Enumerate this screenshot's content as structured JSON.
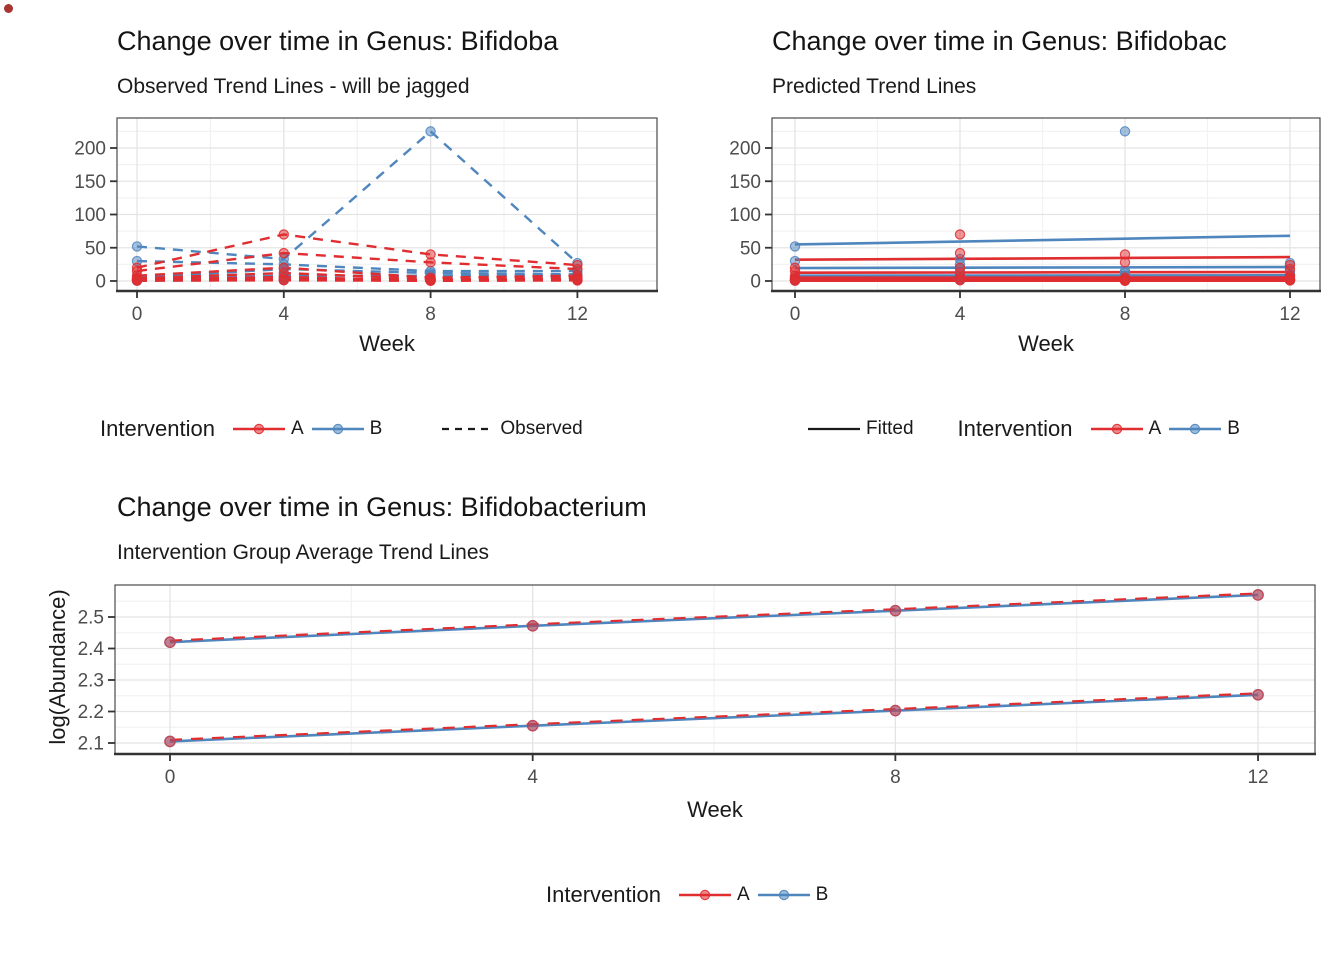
{
  "colors": {
    "red": "#E02D30",
    "blue": "#4F86BE",
    "axis": "#333333",
    "panel_border": "#4a4a4a",
    "grid_major": "#e4e4e4",
    "grid_minor": "#f2f2f2",
    "tick_text": "#4d4d4d"
  },
  "artifact": {
    "dot_color": "#a8342f"
  },
  "chart_data": [
    {
      "id": "observed",
      "type": "line",
      "title": "Change over time in Genus: Bifidoba",
      "subtitle": "Observed Trend Lines - will be jagged",
      "xlabel": "Week",
      "ylabel": "",
      "x": [
        0,
        4,
        8,
        12
      ],
      "x_ticks": [
        0,
        4,
        8,
        12
      ],
      "x_tick_labels": [
        "0",
        "4",
        "8",
        "12"
      ],
      "x_minor": [
        2,
        6,
        10
      ],
      "y_ticks": [
        0,
        50,
        100,
        150,
        200
      ],
      "y_tick_labels": [
        "0",
        "50",
        "100",
        "150",
        "200"
      ],
      "y_minor": [
        25,
        75,
        125,
        175,
        225
      ],
      "ylim": [
        -15,
        245
      ],
      "line_style": "dashed",
      "grid": true,
      "series": [
        {
          "group": "B",
          "values": [
            52,
            33,
            225,
            27
          ]
        },
        {
          "group": "B",
          "values": [
            30,
            25,
            15,
            15
          ]
        },
        {
          "group": "B",
          "values": [
            5,
            18,
            12,
            10
          ]
        },
        {
          "group": "B",
          "values": [
            3,
            8,
            8,
            8
          ]
        },
        {
          "group": "B",
          "values": [
            1,
            4,
            2,
            3
          ]
        },
        {
          "group": "B",
          "values": [
            0.5,
            1.5,
            1,
            1
          ]
        },
        {
          "group": "A",
          "values": [
            20,
            70,
            40,
            24
          ]
        },
        {
          "group": "A",
          "values": [
            15,
            42,
            28,
            18
          ]
        },
        {
          "group": "A",
          "values": [
            8,
            20,
            5,
            8
          ]
        },
        {
          "group": "A",
          "values": [
            4,
            12,
            3,
            5
          ]
        },
        {
          "group": "A",
          "values": [
            2,
            6,
            1,
            3
          ]
        },
        {
          "group": "A",
          "values": [
            1,
            2,
            0.5,
            1.5
          ]
        },
        {
          "group": "A",
          "values": [
            0.5,
            1,
            0.3,
            0.8
          ]
        }
      ]
    },
    {
      "id": "predicted",
      "type": "line",
      "title": "Change over time in Genus: Bifidobac",
      "subtitle": "Predicted Trend Lines",
      "xlabel": "Week",
      "ylabel": "",
      "x": [
        0,
        4,
        8,
        12
      ],
      "x_ticks": [
        0,
        4,
        8,
        12
      ],
      "x_tick_labels": [
        "0",
        "4",
        "8",
        "12"
      ],
      "x_minor": [
        2,
        6,
        10
      ],
      "y_ticks": [
        0,
        50,
        100,
        150,
        200
      ],
      "y_tick_labels": [
        "0",
        "50",
        "100",
        "150",
        "200"
      ],
      "y_minor": [
        25,
        75,
        125,
        175,
        225
      ],
      "ylim": [
        -15,
        245
      ],
      "line_style": "solid",
      "grid": true,
      "lines": [
        {
          "group": "B",
          "values": [
            55,
            59.3,
            63.7,
            68
          ]
        },
        {
          "group": "A",
          "values": [
            32,
            33.3,
            34.7,
            36
          ]
        },
        {
          "group": "B",
          "values": [
            19.5,
            20,
            20.5,
            21
          ]
        },
        {
          "group": "A",
          "values": [
            12.5,
            12.8,
            13.2,
            13.5
          ]
        },
        {
          "group": "B",
          "values": [
            8,
            8.2,
            8.4,
            8.6
          ]
        },
        {
          "group": "A",
          "values": [
            5,
            5,
            5.1,
            5.1
          ]
        },
        {
          "group": "A",
          "values": [
            3.8,
            3.8,
            3.8,
            3.8
          ]
        },
        {
          "group": "B",
          "values": [
            3,
            3,
            3,
            3
          ]
        },
        {
          "group": "A",
          "values": [
            2.2,
            2.2,
            2.2,
            2.2
          ]
        },
        {
          "group": "A",
          "values": [
            1.2,
            1.2,
            1.2,
            1.2
          ]
        },
        {
          "group": "B",
          "values": [
            1,
            1,
            1,
            1
          ]
        },
        {
          "group": "A",
          "values": [
            0.5,
            0.5,
            0.5,
            0.5
          ]
        }
      ],
      "points": [
        {
          "group": "B",
          "values": [
            52,
            33,
            225,
            27
          ]
        },
        {
          "group": "B",
          "values": [
            30,
            25,
            15,
            15
          ]
        },
        {
          "group": "B",
          "values": [
            5,
            18,
            12,
            10
          ]
        },
        {
          "group": "B",
          "values": [
            3,
            8,
            8,
            8
          ]
        },
        {
          "group": "B",
          "values": [
            1,
            4,
            2,
            3
          ]
        },
        {
          "group": "B",
          "values": [
            0.5,
            1.5,
            1,
            1
          ]
        },
        {
          "group": "A",
          "values": [
            20,
            70,
            40,
            24
          ]
        },
        {
          "group": "A",
          "values": [
            15,
            42,
            28,
            18
          ]
        },
        {
          "group": "A",
          "values": [
            8,
            20,
            5,
            8
          ]
        },
        {
          "group": "A",
          "values": [
            4,
            12,
            3,
            5
          ]
        },
        {
          "group": "A",
          "values": [
            2,
            6,
            1,
            3
          ]
        },
        {
          "group": "A",
          "values": [
            1,
            2,
            0.5,
            1.5
          ]
        },
        {
          "group": "A",
          "values": [
            0.5,
            1,
            0.3,
            0.8
          ]
        }
      ]
    },
    {
      "id": "average",
      "type": "line",
      "title": "Change over time in Genus: Bifidobacterium",
      "subtitle": "Intervention Group Average Trend Lines",
      "xlabel": "Week",
      "ylabel": "log(Abundance)",
      "x": [
        0,
        4,
        8,
        12
      ],
      "x_ticks": [
        0,
        4,
        8,
        12
      ],
      "x_tick_labels": [
        "0",
        "4",
        "8",
        "12"
      ],
      "x_minor": [
        2,
        6,
        10
      ],
      "y_ticks": [
        2.1,
        2.2,
        2.3,
        2.4,
        2.5
      ],
      "y_tick_labels": [
        "2.1",
        "2.2",
        "2.3",
        "2.4",
        "2.5"
      ],
      "y_minor": [
        2.15,
        2.25,
        2.35,
        2.45,
        2.55
      ],
      "ylim": [
        2.065,
        2.6
      ],
      "grid": true,
      "overlay_styles": [
        {
          "group": "B",
          "style": "solid"
        },
        {
          "group": "A",
          "style": "dashed"
        }
      ],
      "trend_lines": [
        {
          "name": "upper",
          "values": [
            2.42,
            2.472,
            2.52,
            2.57
          ]
        },
        {
          "name": "lower",
          "values": [
            2.105,
            2.155,
            2.203,
            2.253
          ]
        }
      ]
    }
  ],
  "legends": [
    {
      "title": "Intervention",
      "items": [
        {
          "label": "A",
          "color": "red"
        },
        {
          "label": "B",
          "color": "blue"
        }
      ],
      "linetype": {
        "label": "Observed",
        "style": "dashed"
      }
    },
    {
      "title": "Intervention",
      "items": [
        {
          "label": "A",
          "color": "red"
        },
        {
          "label": "B",
          "color": "blue"
        }
      ],
      "linetype": {
        "label": "Fitted",
        "style": "solid"
      }
    },
    {
      "title": "Intervention",
      "items": [
        {
          "label": "A",
          "color": "red"
        },
        {
          "label": "B",
          "color": "blue"
        }
      ]
    }
  ]
}
